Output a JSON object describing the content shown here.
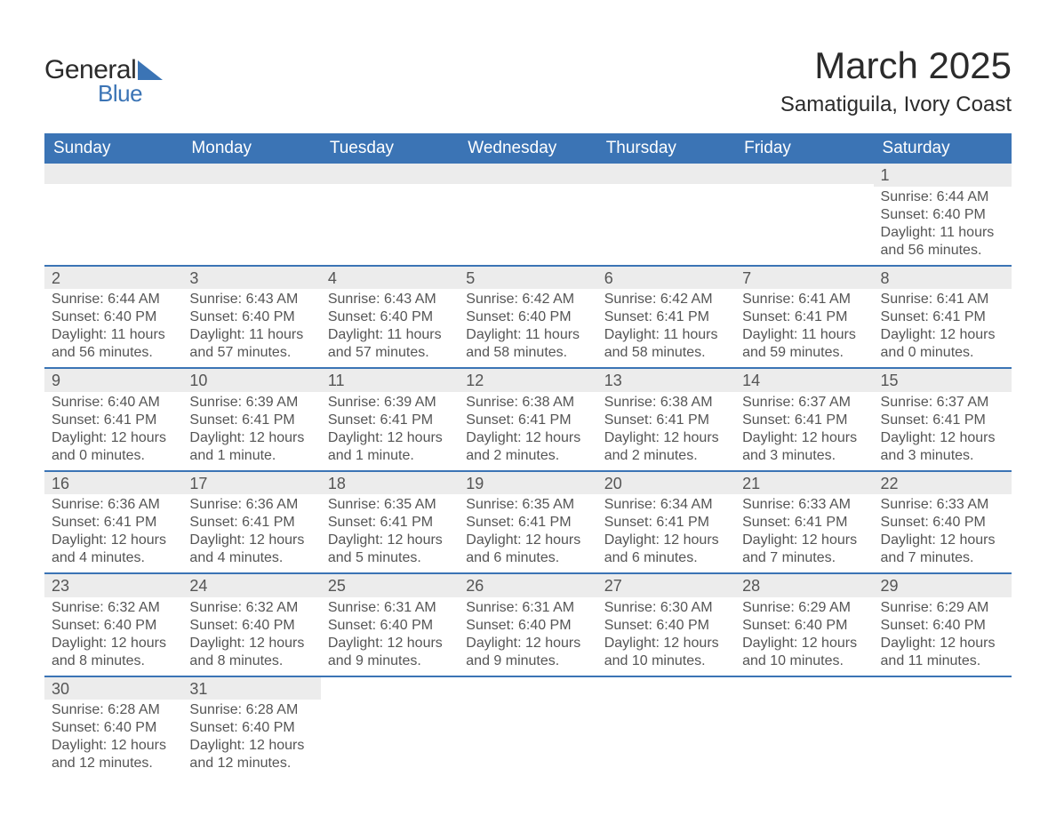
{
  "logo": {
    "text1": "General",
    "text2": "Blue"
  },
  "title": "March 2025",
  "location": "Samatiguila, Ivory Coast",
  "colors": {
    "header_bg": "#3b74b5",
    "header_text": "#ffffff",
    "daynum_bg": "#ececec",
    "text": "#555555",
    "row_divider": "#3b74b5",
    "page_bg": "#ffffff"
  },
  "layout": {
    "columns": 7,
    "rows": 6
  },
  "weekdays": [
    "Sunday",
    "Monday",
    "Tuesday",
    "Wednesday",
    "Thursday",
    "Friday",
    "Saturday"
  ],
  "weeks": [
    [
      {
        "num": "",
        "sunrise": "",
        "sunset": "",
        "daylight1": "",
        "daylight2": ""
      },
      {
        "num": "",
        "sunrise": "",
        "sunset": "",
        "daylight1": "",
        "daylight2": ""
      },
      {
        "num": "",
        "sunrise": "",
        "sunset": "",
        "daylight1": "",
        "daylight2": ""
      },
      {
        "num": "",
        "sunrise": "",
        "sunset": "",
        "daylight1": "",
        "daylight2": ""
      },
      {
        "num": "",
        "sunrise": "",
        "sunset": "",
        "daylight1": "",
        "daylight2": ""
      },
      {
        "num": "",
        "sunrise": "",
        "sunset": "",
        "daylight1": "",
        "daylight2": ""
      },
      {
        "num": "1",
        "sunrise": "Sunrise: 6:44 AM",
        "sunset": "Sunset: 6:40 PM",
        "daylight1": "Daylight: 11 hours",
        "daylight2": "and 56 minutes."
      }
    ],
    [
      {
        "num": "2",
        "sunrise": "Sunrise: 6:44 AM",
        "sunset": "Sunset: 6:40 PM",
        "daylight1": "Daylight: 11 hours",
        "daylight2": "and 56 minutes."
      },
      {
        "num": "3",
        "sunrise": "Sunrise: 6:43 AM",
        "sunset": "Sunset: 6:40 PM",
        "daylight1": "Daylight: 11 hours",
        "daylight2": "and 57 minutes."
      },
      {
        "num": "4",
        "sunrise": "Sunrise: 6:43 AM",
        "sunset": "Sunset: 6:40 PM",
        "daylight1": "Daylight: 11 hours",
        "daylight2": "and 57 minutes."
      },
      {
        "num": "5",
        "sunrise": "Sunrise: 6:42 AM",
        "sunset": "Sunset: 6:40 PM",
        "daylight1": "Daylight: 11 hours",
        "daylight2": "and 58 minutes."
      },
      {
        "num": "6",
        "sunrise": "Sunrise: 6:42 AM",
        "sunset": "Sunset: 6:41 PM",
        "daylight1": "Daylight: 11 hours",
        "daylight2": "and 58 minutes."
      },
      {
        "num": "7",
        "sunrise": "Sunrise: 6:41 AM",
        "sunset": "Sunset: 6:41 PM",
        "daylight1": "Daylight: 11 hours",
        "daylight2": "and 59 minutes."
      },
      {
        "num": "8",
        "sunrise": "Sunrise: 6:41 AM",
        "sunset": "Sunset: 6:41 PM",
        "daylight1": "Daylight: 12 hours",
        "daylight2": "and 0 minutes."
      }
    ],
    [
      {
        "num": "9",
        "sunrise": "Sunrise: 6:40 AM",
        "sunset": "Sunset: 6:41 PM",
        "daylight1": "Daylight: 12 hours",
        "daylight2": "and 0 minutes."
      },
      {
        "num": "10",
        "sunrise": "Sunrise: 6:39 AM",
        "sunset": "Sunset: 6:41 PM",
        "daylight1": "Daylight: 12 hours",
        "daylight2": "and 1 minute."
      },
      {
        "num": "11",
        "sunrise": "Sunrise: 6:39 AM",
        "sunset": "Sunset: 6:41 PM",
        "daylight1": "Daylight: 12 hours",
        "daylight2": "and 1 minute."
      },
      {
        "num": "12",
        "sunrise": "Sunrise: 6:38 AM",
        "sunset": "Sunset: 6:41 PM",
        "daylight1": "Daylight: 12 hours",
        "daylight2": "and 2 minutes."
      },
      {
        "num": "13",
        "sunrise": "Sunrise: 6:38 AM",
        "sunset": "Sunset: 6:41 PM",
        "daylight1": "Daylight: 12 hours",
        "daylight2": "and 2 minutes."
      },
      {
        "num": "14",
        "sunrise": "Sunrise: 6:37 AM",
        "sunset": "Sunset: 6:41 PM",
        "daylight1": "Daylight: 12 hours",
        "daylight2": "and 3 minutes."
      },
      {
        "num": "15",
        "sunrise": "Sunrise: 6:37 AM",
        "sunset": "Sunset: 6:41 PM",
        "daylight1": "Daylight: 12 hours",
        "daylight2": "and 3 minutes."
      }
    ],
    [
      {
        "num": "16",
        "sunrise": "Sunrise: 6:36 AM",
        "sunset": "Sunset: 6:41 PM",
        "daylight1": "Daylight: 12 hours",
        "daylight2": "and 4 minutes."
      },
      {
        "num": "17",
        "sunrise": "Sunrise: 6:36 AM",
        "sunset": "Sunset: 6:41 PM",
        "daylight1": "Daylight: 12 hours",
        "daylight2": "and 4 minutes."
      },
      {
        "num": "18",
        "sunrise": "Sunrise: 6:35 AM",
        "sunset": "Sunset: 6:41 PM",
        "daylight1": "Daylight: 12 hours",
        "daylight2": "and 5 minutes."
      },
      {
        "num": "19",
        "sunrise": "Sunrise: 6:35 AM",
        "sunset": "Sunset: 6:41 PM",
        "daylight1": "Daylight: 12 hours",
        "daylight2": "and 6 minutes."
      },
      {
        "num": "20",
        "sunrise": "Sunrise: 6:34 AM",
        "sunset": "Sunset: 6:41 PM",
        "daylight1": "Daylight: 12 hours",
        "daylight2": "and 6 minutes."
      },
      {
        "num": "21",
        "sunrise": "Sunrise: 6:33 AM",
        "sunset": "Sunset: 6:41 PM",
        "daylight1": "Daylight: 12 hours",
        "daylight2": "and 7 minutes."
      },
      {
        "num": "22",
        "sunrise": "Sunrise: 6:33 AM",
        "sunset": "Sunset: 6:40 PM",
        "daylight1": "Daylight: 12 hours",
        "daylight2": "and 7 minutes."
      }
    ],
    [
      {
        "num": "23",
        "sunrise": "Sunrise: 6:32 AM",
        "sunset": "Sunset: 6:40 PM",
        "daylight1": "Daylight: 12 hours",
        "daylight2": "and 8 minutes."
      },
      {
        "num": "24",
        "sunrise": "Sunrise: 6:32 AM",
        "sunset": "Sunset: 6:40 PM",
        "daylight1": "Daylight: 12 hours",
        "daylight2": "and 8 minutes."
      },
      {
        "num": "25",
        "sunrise": "Sunrise: 6:31 AM",
        "sunset": "Sunset: 6:40 PM",
        "daylight1": "Daylight: 12 hours",
        "daylight2": "and 9 minutes."
      },
      {
        "num": "26",
        "sunrise": "Sunrise: 6:31 AM",
        "sunset": "Sunset: 6:40 PM",
        "daylight1": "Daylight: 12 hours",
        "daylight2": "and 9 minutes."
      },
      {
        "num": "27",
        "sunrise": "Sunrise: 6:30 AM",
        "sunset": "Sunset: 6:40 PM",
        "daylight1": "Daylight: 12 hours",
        "daylight2": "and 10 minutes."
      },
      {
        "num": "28",
        "sunrise": "Sunrise: 6:29 AM",
        "sunset": "Sunset: 6:40 PM",
        "daylight1": "Daylight: 12 hours",
        "daylight2": "and 10 minutes."
      },
      {
        "num": "29",
        "sunrise": "Sunrise: 6:29 AM",
        "sunset": "Sunset: 6:40 PM",
        "daylight1": "Daylight: 12 hours",
        "daylight2": "and 11 minutes."
      }
    ],
    [
      {
        "num": "30",
        "sunrise": "Sunrise: 6:28 AM",
        "sunset": "Sunset: 6:40 PM",
        "daylight1": "Daylight: 12 hours",
        "daylight2": "and 12 minutes."
      },
      {
        "num": "31",
        "sunrise": "Sunrise: 6:28 AM",
        "sunset": "Sunset: 6:40 PM",
        "daylight1": "Daylight: 12 hours",
        "daylight2": "and 12 minutes."
      },
      {
        "num": "",
        "sunrise": "",
        "sunset": "",
        "daylight1": "",
        "daylight2": ""
      },
      {
        "num": "",
        "sunrise": "",
        "sunset": "",
        "daylight1": "",
        "daylight2": ""
      },
      {
        "num": "",
        "sunrise": "",
        "sunset": "",
        "daylight1": "",
        "daylight2": ""
      },
      {
        "num": "",
        "sunrise": "",
        "sunset": "",
        "daylight1": "",
        "daylight2": ""
      },
      {
        "num": "",
        "sunrise": "",
        "sunset": "",
        "daylight1": "",
        "daylight2": ""
      }
    ]
  ]
}
